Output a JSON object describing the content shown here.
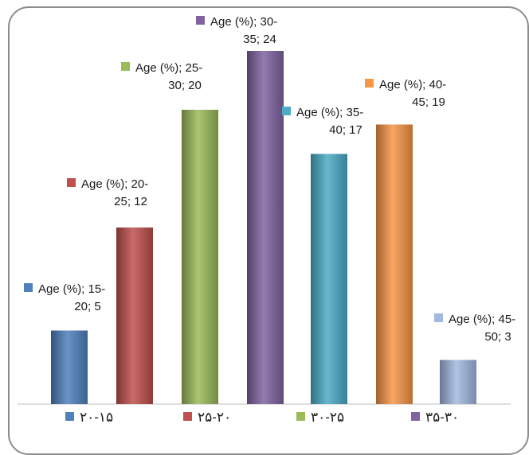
{
  "chart_data": {
    "type": "bar",
    "series_name": "Age (%)",
    "categories": [
      "15-20",
      "20-25",
      "25-30",
      "30-35",
      "35-40",
      "40-45",
      "45-50"
    ],
    "values": [
      5,
      12,
      20,
      24,
      17,
      19,
      3
    ],
    "colors": [
      "#4f81bd",
      "#c0504d",
      "#9bbb59",
      "#8064a2",
      "#4bacc6",
      "#f79646",
      "#a3b9e0"
    ],
    "ylim": [
      0,
      24
    ],
    "grid": false,
    "data_labels": [
      {
        "line1": "Age (%); 15-",
        "line2": "20; 5"
      },
      {
        "line1": "Age (%); 20-",
        "line2": "25; 12"
      },
      {
        "line1": "Age (%); 25-",
        "line2": "30; 20"
      },
      {
        "line1": "Age (%); 30-",
        "line2": "35; 24"
      },
      {
        "line1": "Age (%); 35-",
        "line2": "40; 17"
      },
      {
        "line1": "Age (%); 40-",
        "line2": "45; 19"
      },
      {
        "line1": "Age (%); 45-",
        "line2": "50; 3"
      }
    ],
    "legend": {
      "placement": "bottom",
      "entries": [
        {
          "label": "۲۰-۱۵",
          "color": "#4f81bd"
        },
        {
          "label": "۲۵-۲۰",
          "color": "#c0504d"
        },
        {
          "label": "۳۰-۲۵",
          "color": "#9bbb59"
        },
        {
          "label": "۳۵-۳۰",
          "color": "#8064a2"
        }
      ]
    }
  }
}
